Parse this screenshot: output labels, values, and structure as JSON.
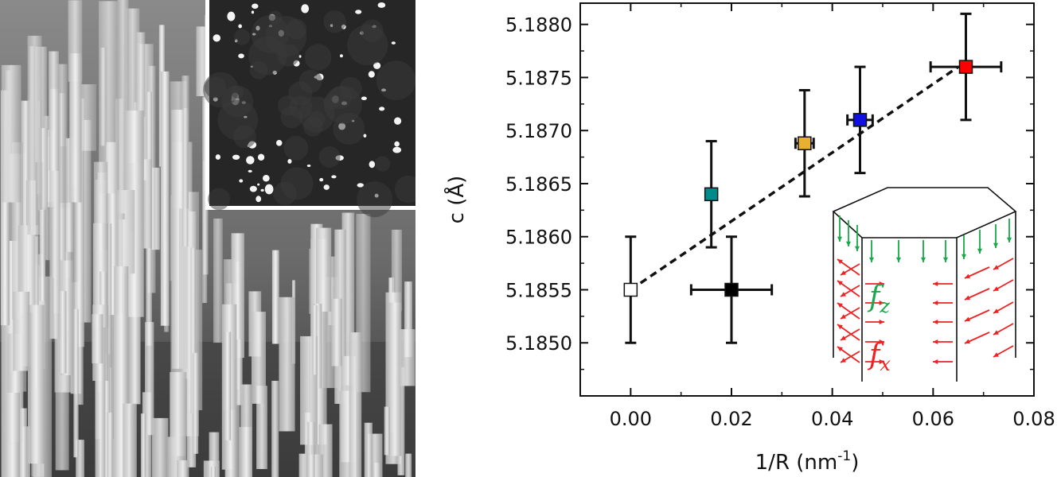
{
  "chart_data": {
    "type": "scatter",
    "xlabel": "1/R (nm",
    "xlabel_sup": "-1",
    "xlabel_end": ")",
    "ylabel": "c (Å)",
    "xlim": [
      -0.01,
      0.08
    ],
    "ylim": [
      5.1845,
      5.1882
    ],
    "x_ticks": [
      0.0,
      0.02,
      0.04,
      0.06,
      0.08
    ],
    "x_tick_labels": [
      "0.00",
      "0.02",
      "0.04",
      "0.06",
      "0.08"
    ],
    "y_ticks": [
      5.185,
      5.1855,
      5.186,
      5.1865,
      5.187,
      5.1875,
      5.188
    ],
    "y_tick_labels": [
      "5.1850",
      "5.1855",
      "5.1860",
      "5.1865",
      "5.1870",
      "5.1875",
      "5.1880"
    ],
    "grid": false,
    "points": [
      {
        "x": 0.0,
        "y": 5.1855,
        "xerr": 0,
        "yerr": 0.0005,
        "color": "#ffffff"
      },
      {
        "x": 0.016,
        "y": 5.1864,
        "xerr": 0.0008,
        "yerr": 0.0005,
        "color": "#008b8b"
      },
      {
        "x": 0.02,
        "y": 5.1855,
        "xerr": 0.008,
        "yerr": 0.0005,
        "color": "#000000"
      },
      {
        "x": 0.0345,
        "y": 5.18688,
        "xerr": 0.0018,
        "yerr": 0.0005,
        "color": "#e8b030"
      },
      {
        "x": 0.0455,
        "y": 5.1871,
        "xerr": 0.0025,
        "yerr": 0.0005,
        "color": "#1010e0"
      },
      {
        "x": 0.0665,
        "y": 5.1876,
        "xerr": 0.007,
        "yerr": 0.0005,
        "color": "#ff0000"
      }
    ],
    "fit_line": {
      "x": [
        0.0,
        0.065
      ],
      "y": [
        5.1855,
        5.1876
      ],
      "style": "dashed"
    },
    "inset_labels": {
      "fz_main": "f",
      "fz_sub": "z",
      "fz_color": "#1aa84a",
      "fx_main": "f",
      "fx_sub": "x",
      "fx_color": "#ee2222"
    }
  }
}
